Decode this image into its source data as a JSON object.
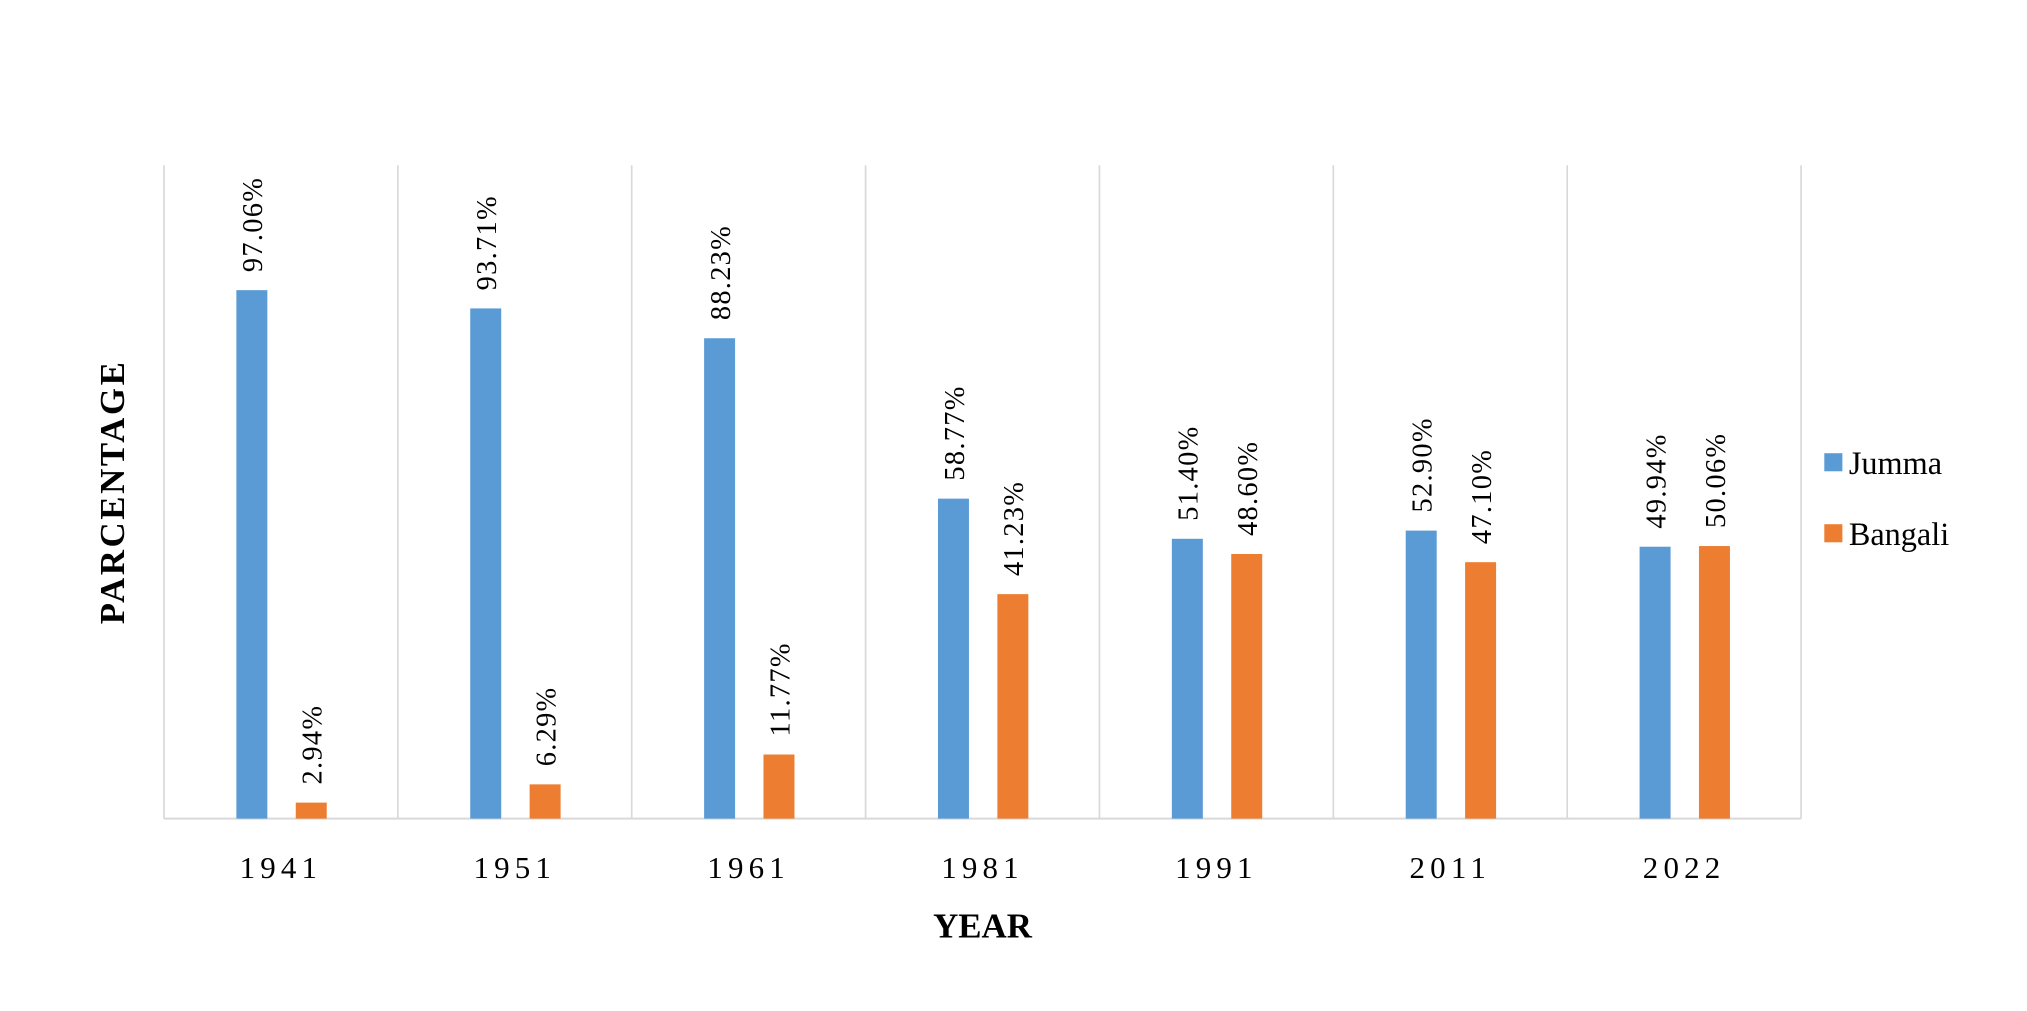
{
  "chart_data": {
    "type": "bar",
    "title": "",
    "xlabel": "YEAR",
    "ylabel": "PARCENTAGE",
    "categories": [
      "1941",
      "1951",
      "1961",
      "1981",
      "1991",
      "2011",
      "2022"
    ],
    "series": [
      {
        "name": "Jumma",
        "color": "#5B9BD5",
        "values": [
          97.06,
          93.71,
          88.23,
          58.77,
          51.4,
          52.9,
          49.94
        ],
        "labels": [
          "97.06%",
          "93.71%",
          "88.23%",
          "58.77%",
          "51.40%",
          "52.90%",
          "49.94%"
        ]
      },
      {
        "name": "Bangali",
        "color": "#ED7D31",
        "values": [
          2.94,
          6.29,
          11.77,
          41.23,
          48.6,
          47.1,
          50.06
        ],
        "labels": [
          "2.94%",
          "6.29%",
          "11.77%",
          "41.23%",
          "48.60%",
          "47.10%",
          "50.06%"
        ]
      }
    ],
    "ylim": [
      0,
      120
    ],
    "grid": "vertical category separators",
    "legend_position": "right"
  }
}
